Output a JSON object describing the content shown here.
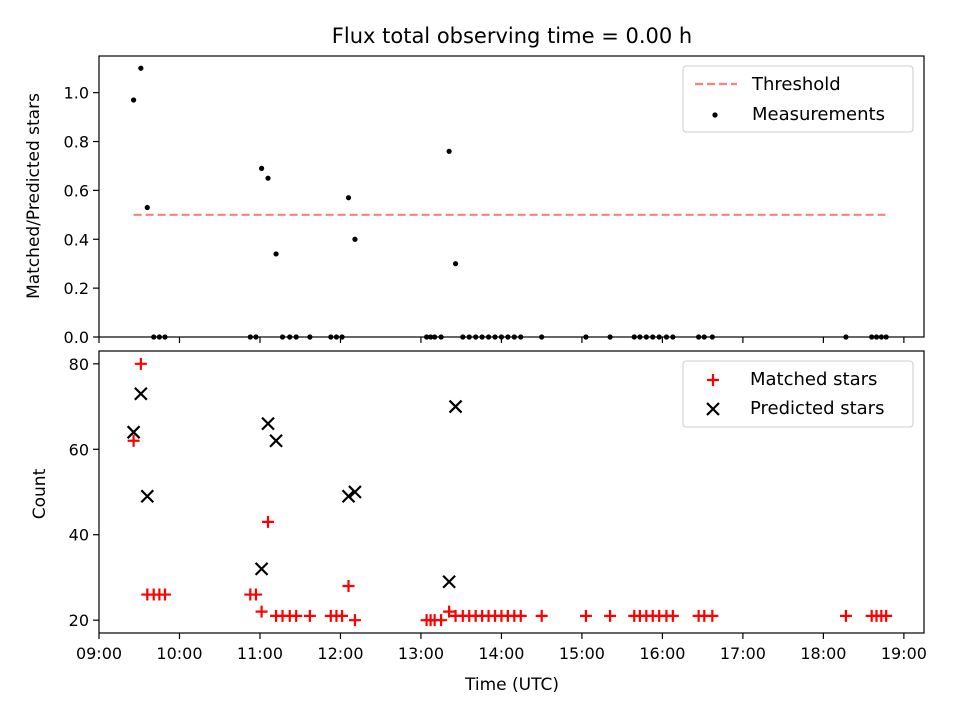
{
  "chart_data": [
    {
      "type": "scatter",
      "title": "Flux total observing time = 0.00 h",
      "xlabel": "",
      "ylabel": "Matched/Predicted stars",
      "xlim": [
        9.0,
        19.25
      ],
      "ylim": [
        0.0,
        1.15
      ],
      "yticks": [
        0.0,
        0.2,
        0.4,
        0.6,
        0.8,
        1.0
      ],
      "ytick_labels": [
        "0.0",
        "0.2",
        "0.4",
        "0.6",
        "0.8",
        "1.0"
      ],
      "xticks": [
        9,
        10,
        11,
        12,
        13,
        14,
        15,
        16,
        17,
        18,
        19
      ],
      "legend": {
        "position": "top-right",
        "entries": [
          "Threshold",
          "Measurements"
        ]
      },
      "threshold": {
        "name": "Threshold",
        "value": 0.5,
        "x_range": [
          9.43,
          18.77
        ],
        "color": "#ff7f7f",
        "style": "dashed"
      },
      "series": [
        {
          "name": "Measurements",
          "color": "#000000",
          "marker": "dot",
          "x": [
            9.43,
            9.52,
            9.6,
            9.68,
            9.75,
            9.82,
            10.88,
            10.95,
            11.02,
            11.1,
            11.2,
            11.28,
            11.37,
            11.45,
            11.62,
            11.88,
            11.95,
            12.02,
            12.1,
            12.18,
            13.07,
            13.12,
            13.17,
            13.25,
            13.35,
            13.43,
            13.52,
            13.6,
            13.68,
            13.76,
            13.84,
            13.92,
            14.0,
            14.08,
            14.16,
            14.24,
            14.5,
            15.05,
            15.35,
            15.65,
            15.72,
            15.8,
            15.88,
            15.96,
            16.05,
            16.13,
            16.45,
            16.52,
            16.62,
            18.28,
            18.6,
            18.66,
            18.72,
            18.78
          ],
          "y": [
            0.97,
            1.1,
            0.53,
            0,
            0,
            0,
            0,
            0,
            0.69,
            0.65,
            0.34,
            0,
            0,
            0,
            0,
            0,
            0,
            0,
            0.57,
            0.4,
            0,
            0,
            0,
            0,
            0.76,
            0.3,
            0,
            0,
            0,
            0,
            0,
            0,
            0,
            0,
            0,
            0,
            0,
            0,
            0,
            0,
            0,
            0,
            0,
            0,
            0,
            0,
            0,
            0,
            0,
            0,
            0,
            0,
            0,
            0
          ]
        }
      ]
    },
    {
      "type": "scatter",
      "title": "",
      "xlabel": "Time (UTC)",
      "ylabel": "Count",
      "xlim": [
        9.0,
        19.25
      ],
      "ylim": [
        17,
        83
      ],
      "yticks": [
        20,
        40,
        60,
        80
      ],
      "ytick_labels": [
        "20",
        "40",
        "60",
        "80"
      ],
      "xticks": [
        9,
        10,
        11,
        12,
        13,
        14,
        15,
        16,
        17,
        18,
        19
      ],
      "xtick_labels": [
        "09:00",
        "10:00",
        "11:00",
        "12:00",
        "13:00",
        "14:00",
        "15:00",
        "16:00",
        "17:00",
        "18:00",
        "19:00"
      ],
      "legend": {
        "position": "top-right",
        "entries": [
          "Matched stars",
          "Predicted stars"
        ]
      },
      "series": [
        {
          "name": "Matched stars",
          "color": "#ff0000",
          "marker": "plus",
          "x": [
            9.43,
            9.52,
            9.6,
            9.68,
            9.75,
            9.82,
            10.88,
            10.95,
            11.02,
            11.1,
            11.2,
            11.28,
            11.37,
            11.45,
            11.62,
            11.88,
            11.95,
            12.02,
            12.1,
            12.18,
            13.07,
            13.12,
            13.17,
            13.25,
            13.35,
            13.43,
            13.52,
            13.6,
            13.68,
            13.76,
            13.84,
            13.92,
            14.0,
            14.08,
            14.16,
            14.24,
            14.5,
            15.05,
            15.35,
            15.65,
            15.72,
            15.8,
            15.88,
            15.96,
            16.05,
            16.13,
            16.45,
            16.52,
            16.62,
            18.28,
            18.6,
            18.66,
            18.72,
            18.78
          ],
          "y": [
            62,
            80,
            26,
            26,
            26,
            26,
            26,
            26,
            22,
            43,
            21,
            21,
            21,
            21,
            21,
            21,
            21,
            21,
            28,
            20,
            20,
            20,
            20,
            20,
            22,
            21,
            21,
            21,
            21,
            21,
            21,
            21,
            21,
            21,
            21,
            21,
            21,
            21,
            21,
            21,
            21,
            21,
            21,
            21,
            21,
            21,
            21,
            21,
            21,
            21,
            21,
            21,
            21,
            21
          ]
        },
        {
          "name": "Predicted stars",
          "color": "#000000",
          "marker": "x",
          "x": [
            9.43,
            9.52,
            9.6,
            11.02,
            11.1,
            11.2,
            12.1,
            12.18,
            13.35,
            13.43
          ],
          "y": [
            64,
            73,
            49,
            32,
            66,
            62,
            49,
            50,
            29,
            70
          ]
        }
      ]
    }
  ]
}
